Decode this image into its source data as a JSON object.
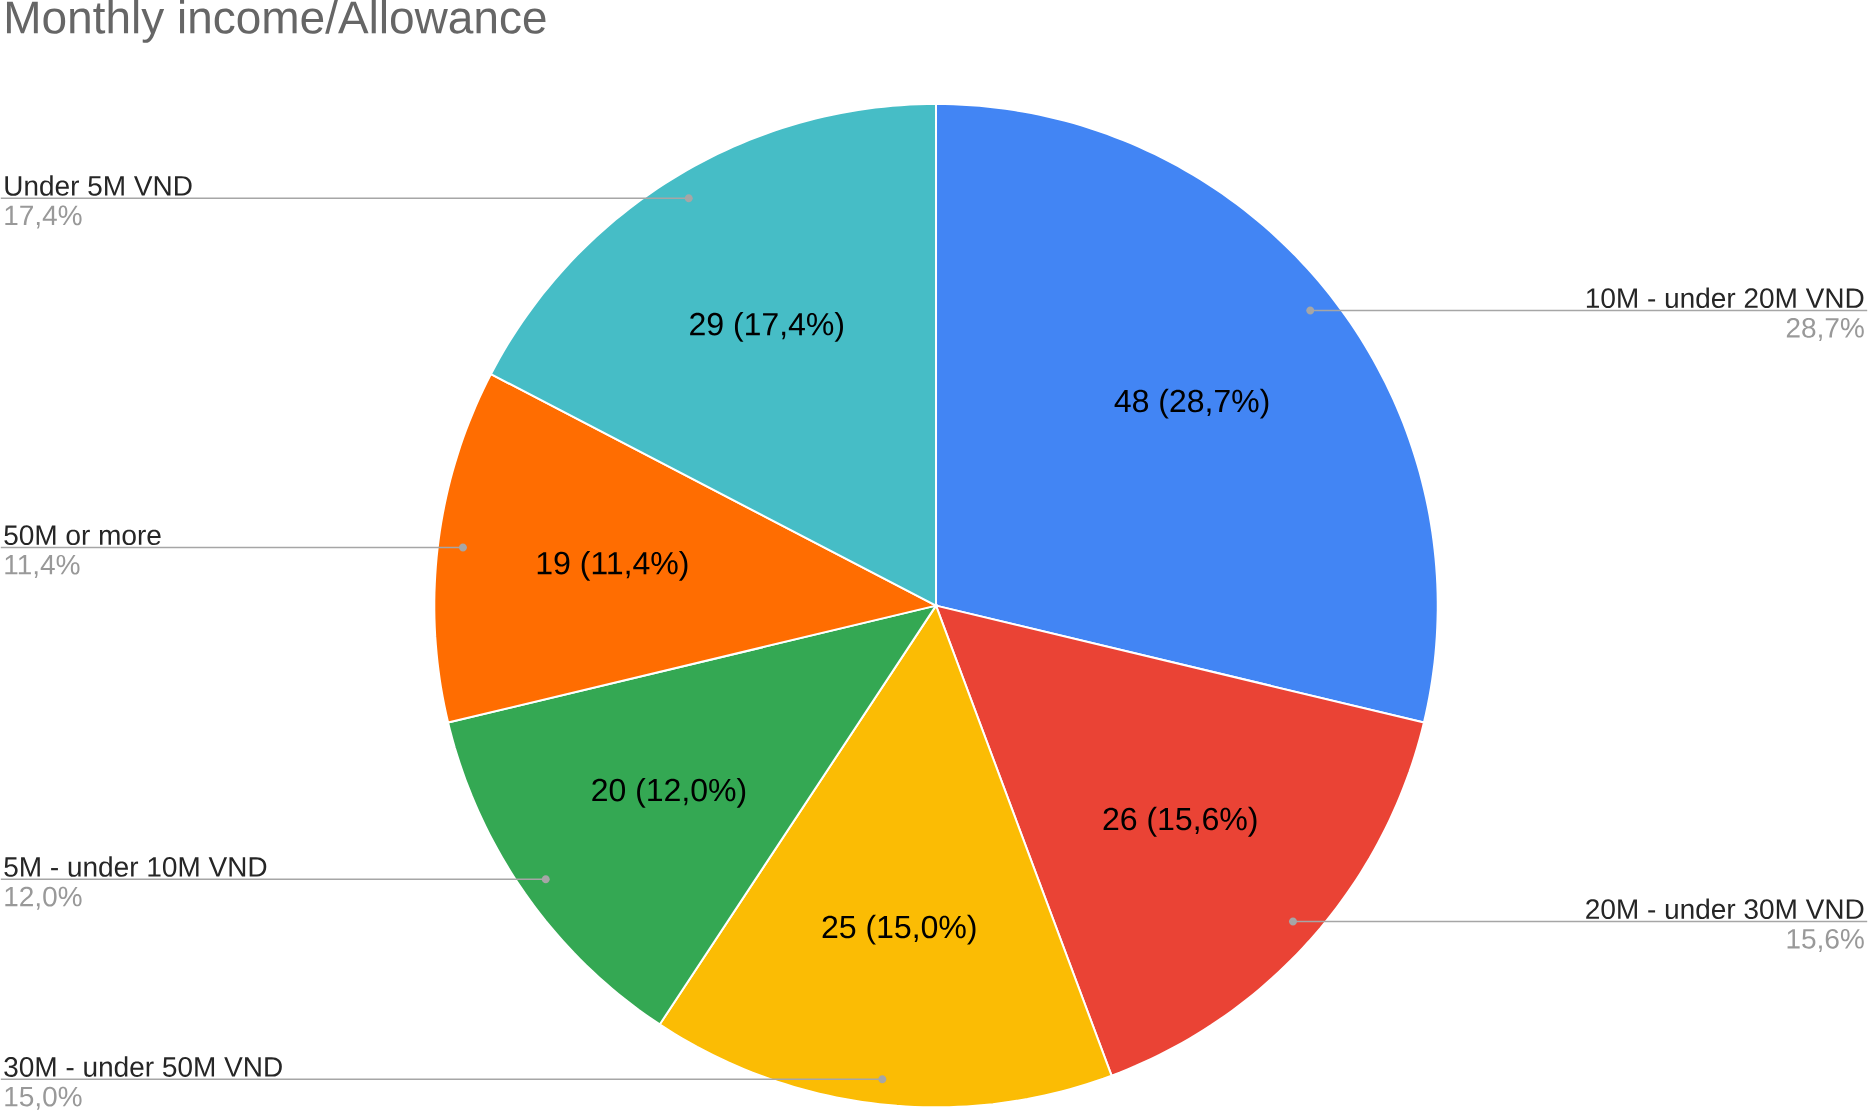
{
  "chart_data": {
    "type": "pie",
    "title": "Monthly income/Allowance",
    "categories": [
      "10M - under 20M VND",
      "20M - under 30M VND",
      "30M - under 50M VND",
      "5M - under 10M VND",
      "50M or more",
      "Under 5M VND"
    ],
    "values": [
      48,
      26,
      25,
      20,
      19,
      29
    ],
    "colors": [
      "#4285f4",
      "#ea4335",
      "#fbbc04",
      "#34a853",
      "#ff6d01",
      "#46bdc6"
    ],
    "value_labels": [
      "48 (28,7%)",
      "26 (15,6%)",
      "25 (15,0%)",
      "20 (12,0%)",
      "19 (11,4%)",
      "29 (17,4%)"
    ],
    "annotations": [
      "28,7%",
      "15,6%",
      "15,0%",
      "12,0%",
      "11,4%",
      "17,4%"
    ]
  }
}
